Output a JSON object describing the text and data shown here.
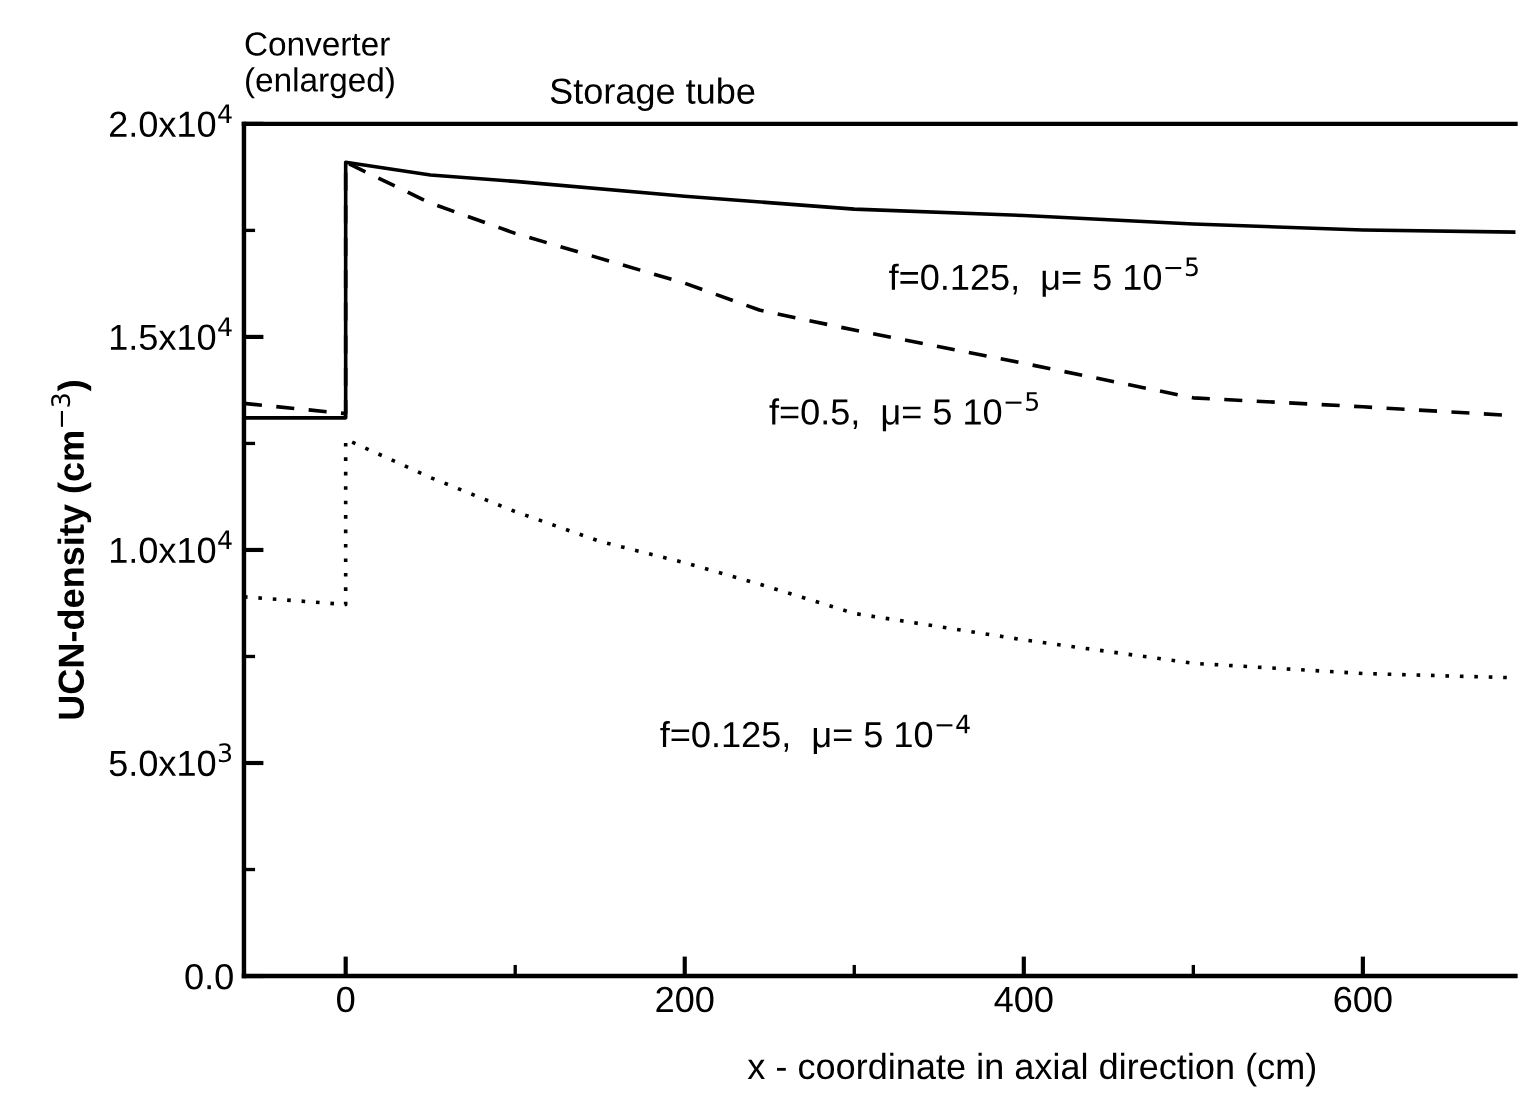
{
  "chart_data": {
    "type": "line",
    "xlabel": "x - coordinate in axial direction (cm)",
    "ylabel": "UCN-density (cm$^{−3}$)",
    "xlim": [
      -60,
      690
    ],
    "ylim": [
      0,
      20000
    ],
    "xticks": [
      0,
      {
        "value": 100,
        "label": null
      },
      200,
      {
        "value": 300,
        "label": null
      },
      400,
      {
        "value": 500,
        "label": null
      },
      600
    ],
    "yticks": [
      {
        "value": 0,
        "label": "0.0"
      },
      {
        "value": 2500,
        "label": null
      },
      {
        "value": 5000,
        "label": "5.0x10$^{3}$"
      },
      {
        "value": 7500,
        "label": null
      },
      {
        "value": 10000,
        "label": "1.0x10$^{4}$"
      },
      {
        "value": 12500,
        "label": null
      },
      {
        "value": 15000,
        "label": "1.5x10$^{4}$"
      },
      {
        "value": 17500,
        "label": null
      },
      {
        "value": 20000,
        "label": "2.0x10$^{4}$"
      }
    ],
    "grid": false,
    "legend": false,
    "series": [
      {
        "name": "f=0.125,  μ= 5 10$^{−5}$",
        "color": "#000000",
        "line_style": "solid",
        "x": [
          -60,
          0,
          0,
          50,
          100,
          200,
          300,
          400,
          500,
          600,
          690
        ],
        "values": [
          13100,
          13100,
          19100,
          18800,
          18650,
          18300,
          18000,
          17850,
          17650,
          17510,
          17460
        ]
      },
      {
        "name": "f=0.5,  μ= 5 10$^{−5}$",
        "color": "#000000",
        "line_style": "dashed",
        "x": [
          -60,
          0,
          0,
          50,
          100,
          200,
          244,
          300,
          400,
          500,
          600,
          690
        ],
        "values": [
          13440,
          13200,
          19100,
          18140,
          17430,
          16260,
          15630,
          15160,
          14380,
          13570,
          13360,
          13150
        ]
      },
      {
        "name": "f=0.125,  μ= 5 10$^{−4}$",
        "color": "#000000",
        "line_style": "dotted",
        "x": [
          -60,
          0,
          0,
          50,
          100,
          150,
          200,
          244,
          300,
          400,
          500,
          600,
          690
        ],
        "values": [
          8900,
          8720,
          12600,
          11700,
          10900,
          10200,
          9700,
          9200,
          8510,
          7890,
          7340,
          7100,
          7000
        ]
      }
    ],
    "annotations": [
      "Converter\n(enlarged)",
      "Storage tube"
    ]
  }
}
